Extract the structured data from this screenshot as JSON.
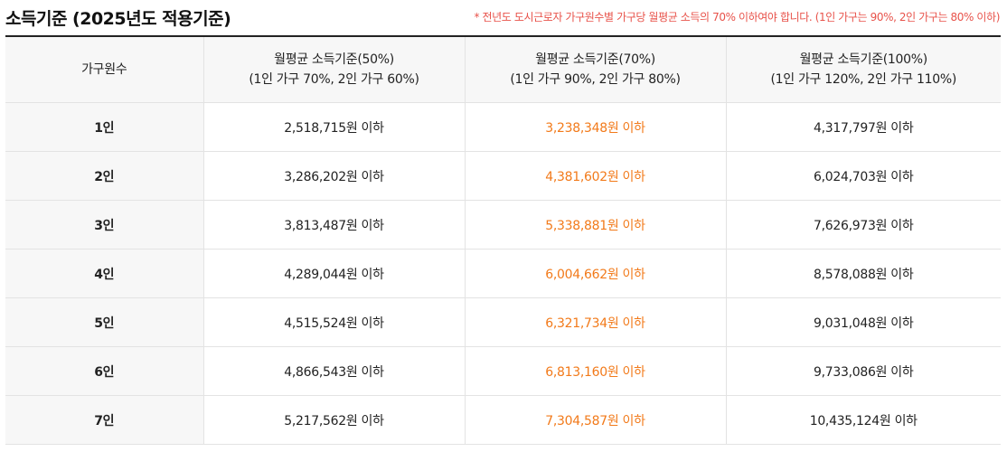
{
  "title": "소득기준 (2025년도 적용기준)",
  "note": "* 전년도 도시근로자 가구원수별 가구당 월평균 소득의 70% 이하여야 합니다. (1인 가구는 90%, 2인 가구는 80% 이하)",
  "colors": {
    "note": "#e8524a",
    "highlight": "#f27a1a",
    "header_bg": "#f7f7f7",
    "border": "#e3e3e3"
  },
  "table": {
    "headers": [
      {
        "line1": "가구원수",
        "line2": ""
      },
      {
        "line1": "월평균 소득기준(50%)",
        "line2": "(1인 가구 70%, 2인 가구 60%)"
      },
      {
        "line1": "월평균 소득기준(70%)",
        "line2": "(1인 가구 90%, 2인 가구 80%)"
      },
      {
        "line1": "월평균 소득기준(100%)",
        "line2": "(1인 가구 120%, 2인 가구 110%)"
      }
    ],
    "rows": [
      {
        "size": "1인",
        "c50": "2,518,715원 이하",
        "c70": "3,238,348원 이하",
        "c100": "4,317,797원 이하"
      },
      {
        "size": "2인",
        "c50": "3,286,202원 이하",
        "c70": "4,381,602원 이하",
        "c100": "6,024,703원 이하"
      },
      {
        "size": "3인",
        "c50": "3,813,487원 이하",
        "c70": "5,338,881원 이하",
        "c100": "7,626,973원 이하"
      },
      {
        "size": "4인",
        "c50": "4,289,044원 이하",
        "c70": "6,004,662원 이하",
        "c100": "8,578,088원 이하"
      },
      {
        "size": "5인",
        "c50": "4,515,524원 이하",
        "c70": "6,321,734원 이하",
        "c100": "9,031,048원 이하"
      },
      {
        "size": "6인",
        "c50": "4,866,543원 이하",
        "c70": "6,813,160원 이하",
        "c100": "9,733,086원 이하"
      },
      {
        "size": "7인",
        "c50": "5,217,562원 이하",
        "c70": "7,304,587원 이하",
        "c100": "10,435,124원 이하"
      }
    ]
  }
}
